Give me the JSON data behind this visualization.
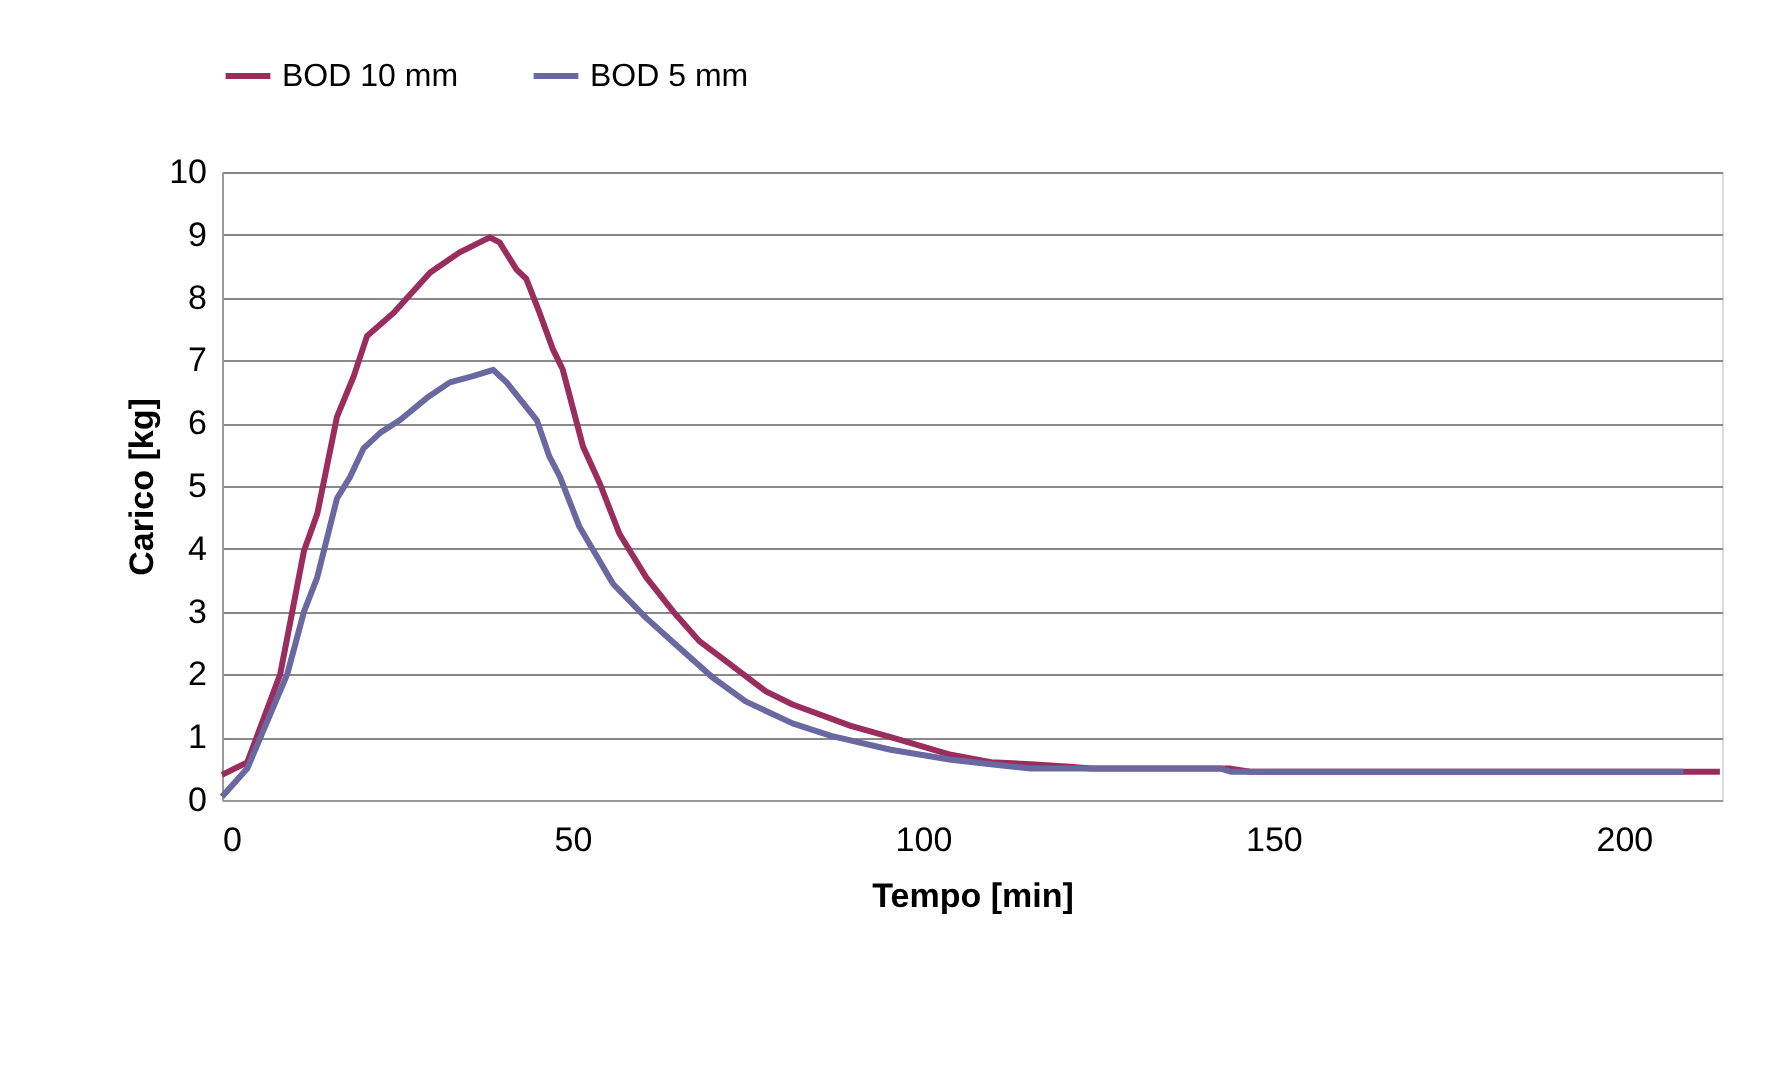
{
  "chart_data": {
    "type": "line",
    "xlabel": "Tempo [min]",
    "ylabel": "Carico [kg]",
    "xlim": [
      0,
      214
    ],
    "xticks": [
      0,
      50,
      100,
      150,
      200
    ],
    "ylim": [
      0,
      10
    ],
    "yticks": [
      0,
      1,
      2,
      3,
      4,
      5,
      6,
      7,
      8,
      9,
      10
    ],
    "grid": "y",
    "legend": "top",
    "marker": "none",
    "line_style": "solid",
    "series": [
      {
        "name": "BOD 10 mm",
        "color": "#9b2d5e",
        "x": [
          0,
          3.6,
          8.3,
          11.7,
          13.6,
          16.4,
          18.8,
          20.7,
          24.5,
          29.7,
          33.9,
          38.2,
          39.6,
          42,
          43.4,
          45.3,
          47.2,
          48.6,
          51.5,
          53.9,
          56.7,
          60.5,
          64.3,
          68.1,
          71.9,
          77.6,
          81.4,
          89.7,
          95.4,
          104,
          109.7,
          115.4,
          121,
          124,
          143.9,
          146.7,
          213.7
        ],
        "values": [
          0.4,
          0.6,
          2.0,
          3.97,
          4.56,
          6.1,
          6.75,
          7.39,
          7.76,
          8.4,
          8.72,
          8.96,
          8.88,
          8.45,
          8.3,
          7.76,
          7.18,
          6.86,
          5.63,
          5.04,
          4.24,
          3.55,
          3.01,
          2.53,
          2.21,
          1.73,
          1.52,
          1.18,
          1.0,
          0.72,
          0.6,
          0.57,
          0.53,
          0.5,
          0.5,
          0.45,
          0.45
        ]
      },
      {
        "name": "BOD 5 mm",
        "color": "#6a68a0",
        "x": [
          0,
          3.6,
          9.3,
          11.7,
          13.6,
          16.4,
          18.3,
          20.2,
          22.6,
          25.4,
          29.2,
          32.5,
          35.8,
          38.7,
          40.6,
          44.9,
          46.7,
          48.2,
          51,
          55.8,
          60.5,
          65.2,
          70,
          74.7,
          81.4,
          86.9,
          95.4,
          104,
          109.7,
          115.4,
          142.5,
          143.9,
          208.5
        ],
        "values": [
          0.05,
          0.5,
          2.0,
          3.0,
          3.55,
          4.8,
          5.15,
          5.6,
          5.85,
          6.05,
          6.4,
          6.65,
          6.75,
          6.85,
          6.65,
          6.05,
          5.47,
          5.15,
          4.35,
          3.44,
          2.9,
          2.43,
          1.95,
          1.57,
          1.22,
          1.02,
          0.8,
          0.64,
          0.57,
          0.5,
          0.5,
          0.45,
          0.45
        ]
      }
    ]
  }
}
